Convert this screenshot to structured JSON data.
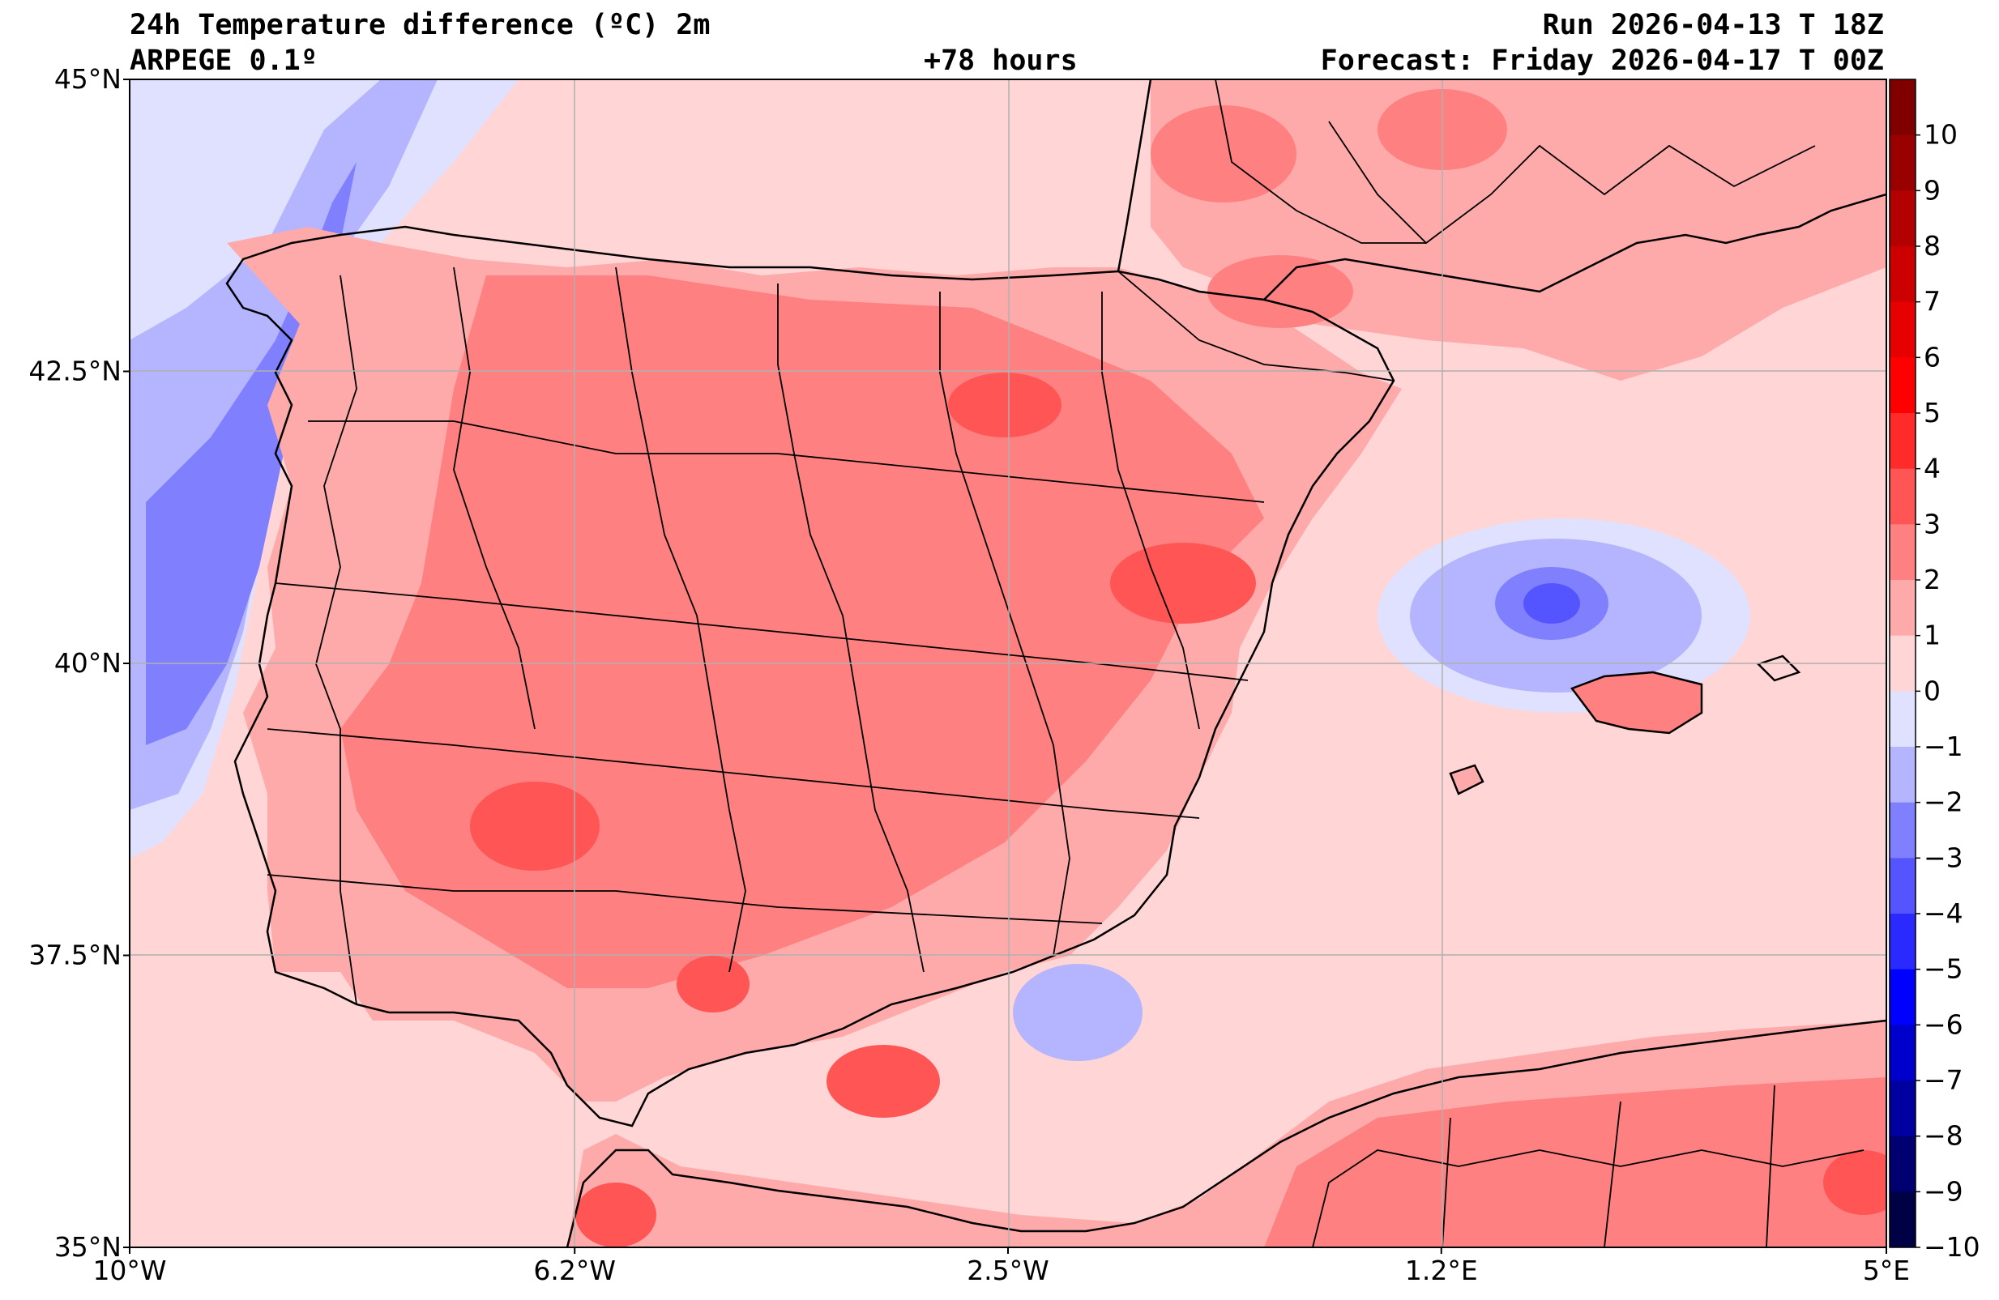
{
  "header": {
    "title_line1": "24h Temperature difference (ºC) 2m",
    "title_line2": "ARPEGE 0.1º",
    "lead_time": "+78 hours",
    "run": "Run 2026-04-13 T 18Z",
    "forecast": "Forecast: Friday 2026-04-17 T 00Z"
  },
  "map": {
    "region": "Iberian Peninsula, Balearic Islands and North Africa",
    "lon_range": [
      -10,
      5
    ],
    "lat_range": [
      35,
      45
    ],
    "lon_ticks": [
      {
        "value": -10,
        "label": "10°W"
      },
      {
        "value": -6.2,
        "label": "6.2°W"
      },
      {
        "value": -2.5,
        "label": "2.5°W"
      },
      {
        "value": 1.2,
        "label": "1.2°E"
      },
      {
        "value": 5,
        "label": "5°E"
      }
    ],
    "lat_ticks": [
      {
        "value": 45,
        "label": "45°N"
      },
      {
        "value": 42.5,
        "label": "42.5°N"
      },
      {
        "value": 40,
        "label": "40°N"
      },
      {
        "value": 37.5,
        "label": "37.5°N"
      },
      {
        "value": 35,
        "label": "35°N"
      }
    ]
  },
  "colorbar": {
    "levels": [
      "10",
      "9",
      "8",
      "7",
      "6",
      "5",
      "4",
      "3",
      "2",
      "1",
      "0",
      "−1",
      "−2",
      "−3",
      "−4",
      "−5",
      "−6",
      "−7",
      "−8",
      "−9",
      "−10"
    ],
    "colors": [
      "#800000",
      "#990000",
      "#b30000",
      "#cc0000",
      "#e60000",
      "#ff0000",
      "#ff2a2a",
      "#ff5555",
      "#ff8080",
      "#ffaaaa",
      "#ffd5d5",
      "#e0e0ff",
      "#b4b4ff",
      "#8080ff",
      "#5555ff",
      "#2a2aff",
      "#0000ff",
      "#0000cc",
      "#0000a0",
      "#000070",
      "#000045"
    ]
  }
}
